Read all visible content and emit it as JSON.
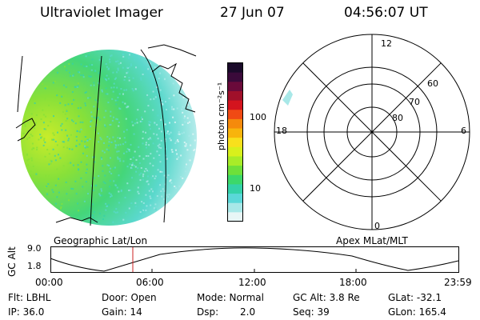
{
  "header": {
    "title": "Ultraviolet Imager",
    "date": "27 Jun 07",
    "time": "04:56:07 UT"
  },
  "colorbar": {
    "label": "photon cm⁻²s⁻¹",
    "ticks": [
      "100",
      "10"
    ],
    "colors": [
      "#1a0a2a",
      "#3a0a3a",
      "#6a0a3a",
      "#a0102a",
      "#d4141e",
      "#f04a14",
      "#f58a0c",
      "#f8b40c",
      "#f8e01c",
      "#d8f01c",
      "#a8ec28",
      "#6ee03a",
      "#3cd86a",
      "#34d2a8",
      "#5ad8d8",
      "#a8e8e8",
      "#e8f6f6"
    ]
  },
  "left_panel": {
    "caption": "Geographic Lat/Lon"
  },
  "right_panel": {
    "caption": "Apex MLat/MLT",
    "hour_labels": [
      "12",
      "18",
      "6",
      "0"
    ],
    "lat_labels": [
      "60",
      "70",
      "80"
    ]
  },
  "timeline": {
    "axis_label": "GC Alt",
    "y_ticks": [
      "9.0",
      "1.8"
    ],
    "x_ticks": [
      "00:00",
      "06:00",
      "12:00",
      "18:00",
      "23:59"
    ],
    "marker_color": "#cc2222"
  },
  "status": {
    "flt": "Flt: LBHL",
    "door": "Door: Open",
    "mode": "Mode: Normal",
    "gc_alt": "GC Alt: 3.8 Re",
    "glat": "GLat: -32.1",
    "ip": "IP: 36.0",
    "gain": "Gain: 14",
    "dsp_label": "Dsp:",
    "dsp_value": "2.0",
    "seq": "Seq: 39",
    "glon": "GLon: 165.4"
  }
}
